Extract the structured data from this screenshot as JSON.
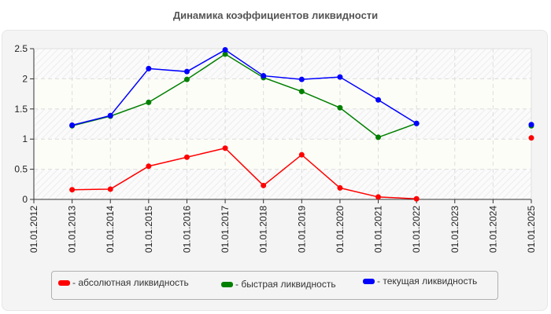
{
  "title": "Динамика коэффициентов ликвидности",
  "chart_data": {
    "type": "line",
    "title": "Динамика коэффициентов ликвидности",
    "xlabel": "",
    "ylabel": "",
    "categories": [
      "01.01.2012",
      "01.01.2013",
      "01.01.2014",
      "01.01.2015",
      "01.01.2016",
      "01.01.2017",
      "01.01.2018",
      "01.01.2019",
      "01.01.2020",
      "01.01.2021",
      "01.01.2022",
      "01.01.2023",
      "01.01.2024",
      "01.01.2025"
    ],
    "yticks": [
      "0",
      "0.5",
      "1",
      "1.5",
      "2",
      "2.5"
    ],
    "ylim": [
      0,
      2.5
    ],
    "grid": true,
    "legend_position": "bottom",
    "series": [
      {
        "name": "абсолютная ликвидность",
        "color": "#ff0000",
        "values": [
          null,
          0.16,
          0.17,
          0.55,
          0.7,
          0.85,
          0.23,
          0.74,
          0.19,
          0.04,
          0.01,
          null,
          null,
          1.02
        ]
      },
      {
        "name": "быстрая ликвидность",
        "color": "#008000",
        "values": [
          null,
          1.22,
          1.38,
          1.61,
          1.99,
          2.41,
          2.02,
          1.79,
          1.52,
          1.03,
          1.26,
          null,
          null,
          1.22
        ]
      },
      {
        "name": "текущая ликвидность",
        "color": "#0000ff",
        "values": [
          null,
          1.23,
          1.39,
          2.17,
          2.12,
          2.48,
          2.05,
          1.99,
          2.03,
          1.65,
          1.26,
          null,
          null,
          1.24
        ]
      }
    ]
  },
  "legend": {
    "items": [
      {
        "label": "- абсолютная ликвидность",
        "color": "#ff0000"
      },
      {
        "label": "- быстрая ликвидность",
        "color": "#008000"
      },
      {
        "label": "- текущая ликвидность",
        "color": "#0000ff"
      }
    ]
  }
}
